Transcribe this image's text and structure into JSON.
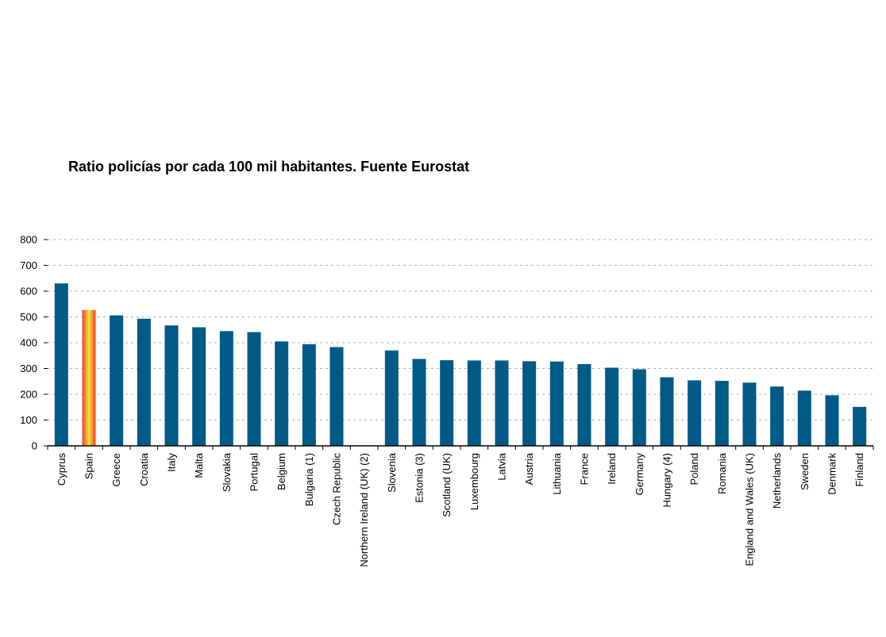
{
  "chart_data": {
    "type": "bar",
    "title": "Ratio policías por cada 100 mil habitantes. Fuente Eurostat",
    "xlabel": "",
    "ylabel": "",
    "ylim": [
      0,
      800
    ],
    "yticks": [
      0,
      100,
      200,
      300,
      400,
      500,
      600,
      700,
      800
    ],
    "grid": true,
    "categories": [
      "Cyprus",
      "Spain",
      "Greece",
      "Croatia",
      "Italy",
      "Malta",
      "Slovakia",
      "Portugal",
      "Belgium",
      "Bulgaria (1)",
      "Czech Republic",
      "Northern Ireland (UK) (2)",
      "Slovenia",
      "Estonia (3)",
      "Scotland (UK)",
      "Luxembourg",
      "Latvia",
      "Austria",
      "Lithuania",
      "France",
      "Ireland",
      "Germany",
      "Hungary (4)",
      "Poland",
      "Romania",
      "England and Wales (UK)",
      "Netherlands",
      "Sweden",
      "Denmark",
      "Finland"
    ],
    "values": [
      630,
      527,
      506,
      493,
      467,
      460,
      445,
      441,
      405,
      394,
      383,
      null,
      370,
      337,
      332,
      331,
      331,
      328,
      327,
      317,
      303,
      297,
      266,
      254,
      252,
      245,
      230,
      214,
      196,
      151
    ],
    "highlight_category": "Spain",
    "colors": {
      "bar": "#005a87",
      "highlight_center": "#f5e62a",
      "highlight_edge": "#f03b3b",
      "grid": "#b0b0b0",
      "axis": "#000000"
    }
  }
}
